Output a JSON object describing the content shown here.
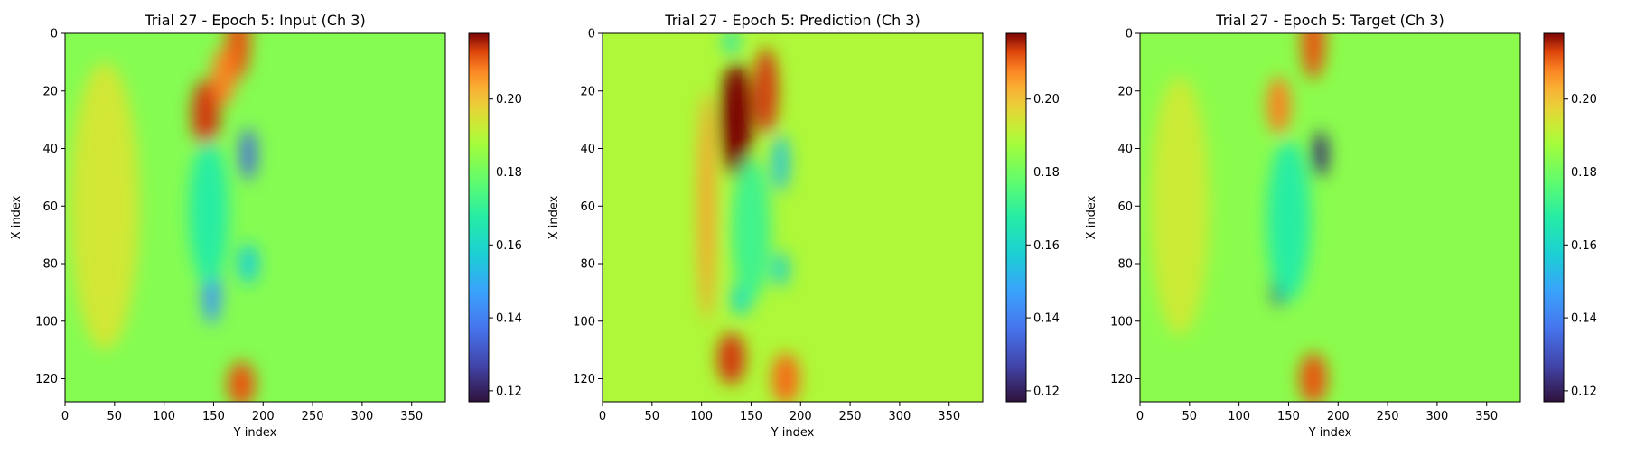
{
  "figure": {
    "colormap": "turbo"
  },
  "chart_data": [
    {
      "type": "heatmap",
      "title": "Trial 27 - Epoch 5: Input (Ch 3)",
      "xlabel": "Y index",
      "ylabel": "X index",
      "xlim": [
        0,
        384
      ],
      "ylim": [
        128,
        0
      ],
      "xticks": [
        0,
        50,
        100,
        150,
        200,
        250,
        300,
        350
      ],
      "yticks": [
        0,
        20,
        40,
        60,
        80,
        100,
        120
      ],
      "colorbar": {
        "vmin": 0.117,
        "vmax": 0.218,
        "ticks": [
          "0.12",
          "0.14",
          "0.16",
          "0.18",
          "0.20"
        ],
        "tick_values": [
          0.12,
          0.14,
          0.16,
          0.18,
          0.2
        ]
      },
      "background_value": 0.183,
      "features": [
        {
          "x": 175,
          "y": 2,
          "rx": 12,
          "ry": 14,
          "value": 0.212
        },
        {
          "x": 142,
          "y": 28,
          "rx": 14,
          "ry": 12,
          "value": 0.214
        },
        {
          "x": 160,
          "y": 15,
          "rx": 12,
          "ry": 10,
          "value": 0.208
        },
        {
          "x": 185,
          "y": 42,
          "rx": 8,
          "ry": 9,
          "value": 0.135
        },
        {
          "x": 148,
          "y": 90,
          "rx": 9,
          "ry": 11,
          "value": 0.145
        },
        {
          "x": 145,
          "y": 62,
          "rx": 20,
          "ry": 25,
          "value": 0.168
        },
        {
          "x": 185,
          "y": 80,
          "rx": 10,
          "ry": 7,
          "value": 0.158
        },
        {
          "x": 178,
          "y": 122,
          "rx": 14,
          "ry": 8,
          "value": 0.212
        },
        {
          "x": 40,
          "y": 60,
          "rx": 35,
          "ry": 50,
          "value": 0.194
        }
      ]
    },
    {
      "type": "heatmap",
      "title": "Trial 27 - Epoch 5: Prediction (Ch 3)",
      "xlabel": "Y index",
      "ylabel": "X index",
      "xlim": [
        0,
        384
      ],
      "ylim": [
        128,
        0
      ],
      "xticks": [
        0,
        50,
        100,
        150,
        200,
        250,
        300,
        350
      ],
      "yticks": [
        0,
        20,
        40,
        60,
        80,
        100,
        120
      ],
      "colorbar": {
        "vmin": 0.117,
        "vmax": 0.218,
        "ticks": [
          "0.12",
          "0.14",
          "0.16",
          "0.18",
          "0.20"
        ],
        "tick_values": [
          0.12,
          0.14,
          0.16,
          0.18,
          0.2
        ]
      },
      "background_value": 0.189,
      "features": [
        {
          "x": 135,
          "y": 30,
          "rx": 16,
          "ry": 20,
          "value": 0.218
        },
        {
          "x": 165,
          "y": 20,
          "rx": 12,
          "ry": 15,
          "value": 0.214
        },
        {
          "x": 130,
          "y": 3,
          "rx": 8,
          "ry": 4,
          "value": 0.165
        },
        {
          "x": 180,
          "y": 45,
          "rx": 8,
          "ry": 10,
          "value": 0.155
        },
        {
          "x": 140,
          "y": 92,
          "rx": 10,
          "ry": 6,
          "value": 0.162
        },
        {
          "x": 180,
          "y": 82,
          "rx": 8,
          "ry": 6,
          "value": 0.16
        },
        {
          "x": 150,
          "y": 68,
          "rx": 20,
          "ry": 25,
          "value": 0.172
        },
        {
          "x": 130,
          "y": 113,
          "rx": 14,
          "ry": 9,
          "value": 0.214
        },
        {
          "x": 185,
          "y": 120,
          "rx": 14,
          "ry": 9,
          "value": 0.21
        },
        {
          "x": 105,
          "y": 60,
          "rx": 8,
          "ry": 40,
          "value": 0.205
        }
      ]
    },
    {
      "type": "heatmap",
      "title": "Trial 27 - Epoch 5: Target (Ch 3)",
      "xlabel": "Y index",
      "ylabel": "X index",
      "xlim": [
        0,
        384
      ],
      "ylim": [
        128,
        0
      ],
      "xticks": [
        0,
        50,
        100,
        150,
        200,
        250,
        300,
        350
      ],
      "yticks": [
        0,
        20,
        40,
        60,
        80,
        100,
        120
      ],
      "colorbar": {
        "vmin": 0.117,
        "vmax": 0.218,
        "ticks": [
          "0.12",
          "0.14",
          "0.16",
          "0.18",
          "0.20"
        ],
        "tick_values": [
          0.12,
          0.14,
          0.16,
          0.18,
          0.2
        ]
      },
      "background_value": 0.184,
      "features": [
        {
          "x": 175,
          "y": 2,
          "rx": 12,
          "ry": 14,
          "value": 0.212
        },
        {
          "x": 140,
          "y": 25,
          "rx": 12,
          "ry": 10,
          "value": 0.208
        },
        {
          "x": 182,
          "y": 42,
          "rx": 8,
          "ry": 8,
          "value": 0.122
        },
        {
          "x": 140,
          "y": 88,
          "rx": 7,
          "ry": 7,
          "value": 0.125
        },
        {
          "x": 150,
          "y": 65,
          "rx": 22,
          "ry": 28,
          "value": 0.168
        },
        {
          "x": 175,
          "y": 120,
          "rx": 14,
          "ry": 9,
          "value": 0.212
        },
        {
          "x": 40,
          "y": 60,
          "rx": 30,
          "ry": 45,
          "value": 0.193
        }
      ]
    }
  ]
}
